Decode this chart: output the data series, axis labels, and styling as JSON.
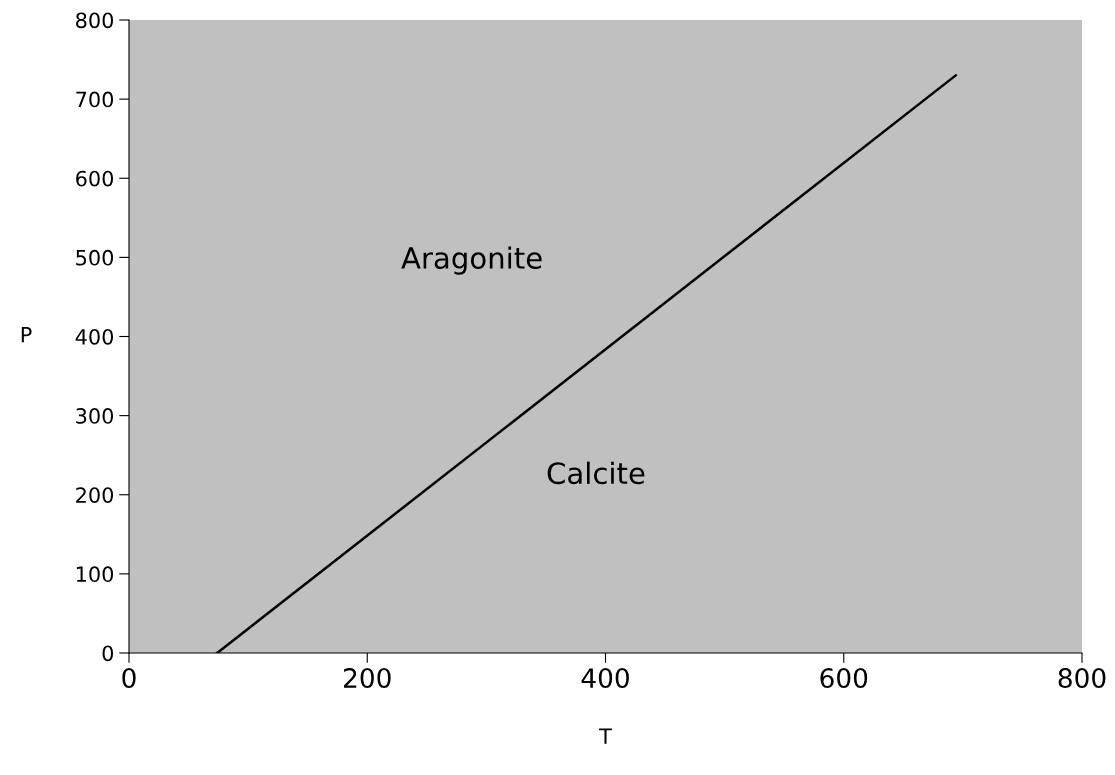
{
  "chart_data": {
    "type": "line",
    "xlabel": "T",
    "ylabel": "P",
    "x": [
      74,
      694
    ],
    "series": [
      {
        "color": "#000000",
        "values": [
          0,
          730
        ]
      }
    ],
    "xlim": [
      0,
      800
    ],
    "xticks": [
      0,
      200,
      400,
      600,
      800
    ],
    "ylim": [
      0,
      800
    ],
    "yticks": [
      0,
      100,
      200,
      300,
      400,
      500,
      600,
      700,
      800
    ],
    "grid": false,
    "legend": false,
    "marker": "none",
    "line_style": "solid",
    "annotations": [
      "Aragonite",
      "Calcite"
    ]
  }
}
